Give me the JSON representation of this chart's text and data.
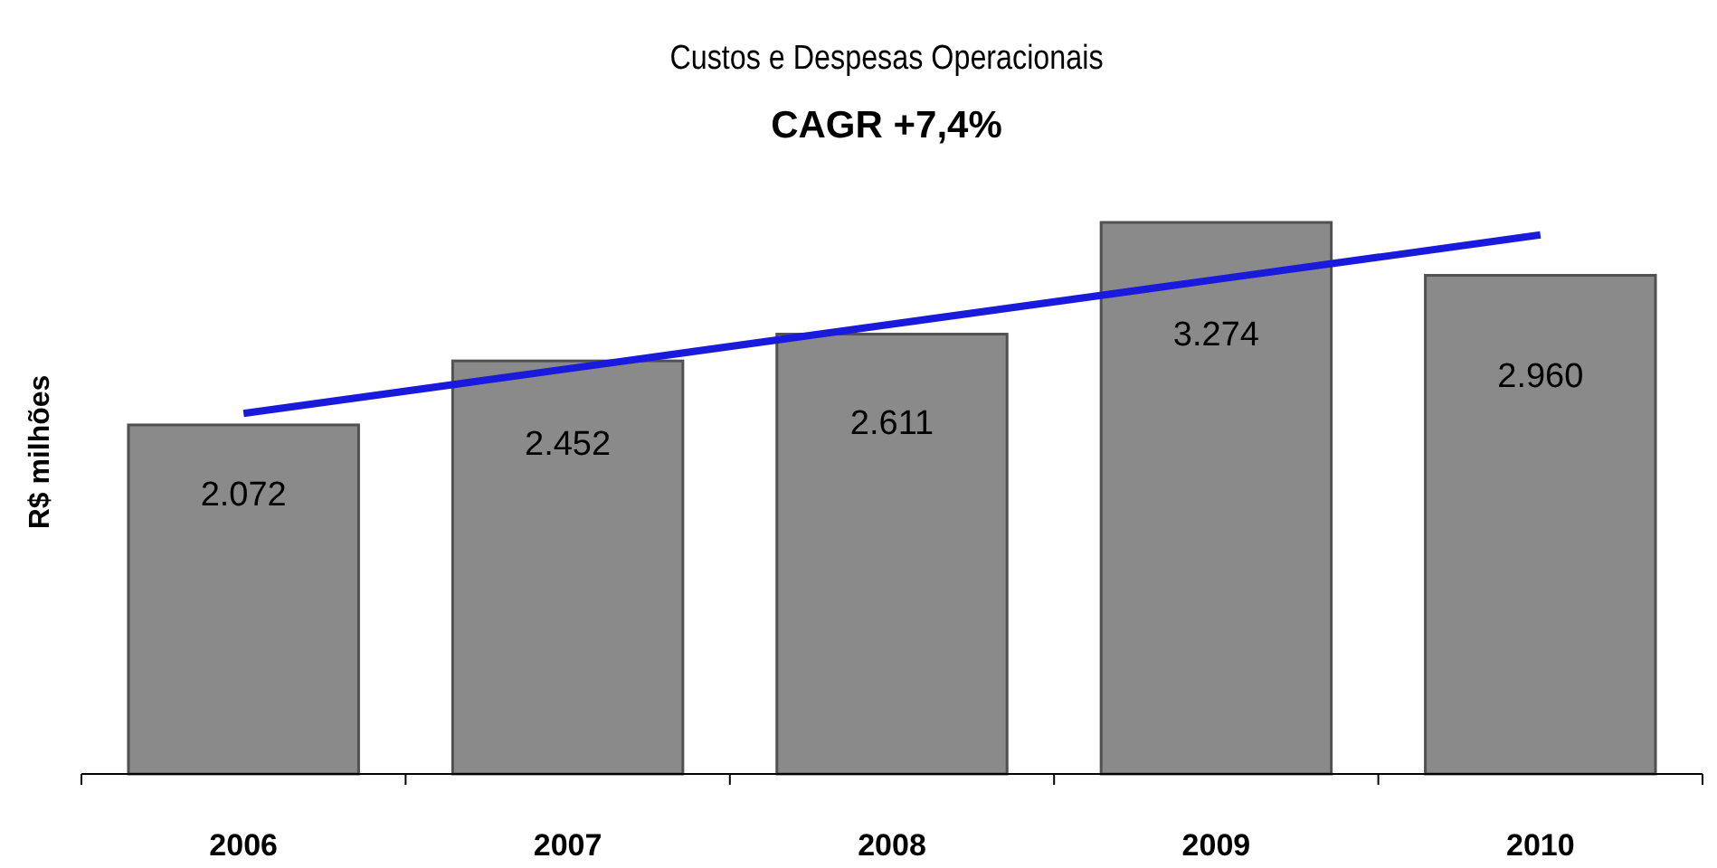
{
  "chart_data": {
    "type": "bar",
    "title": "Custos e Despesas Operacionais",
    "subtitle": "CAGR  +7,4%",
    "ylabel": "R$ milhões",
    "categories": [
      "2006",
      "2007",
      "2008",
      "2009",
      "2010"
    ],
    "series": [
      {
        "color": "#8a8a8a",
        "values": [
          2072,
          2452,
          2611,
          3274,
          2960
        ],
        "value_labels": [
          "2.072",
          "2.452",
          "2.611",
          "3.274",
          "2.960"
        ]
      },
      {
        "type": "line",
        "color": "#1a1adc",
        "values": [
          2140,
          2405,
          2670,
          2935,
          3200
        ]
      }
    ]
  }
}
